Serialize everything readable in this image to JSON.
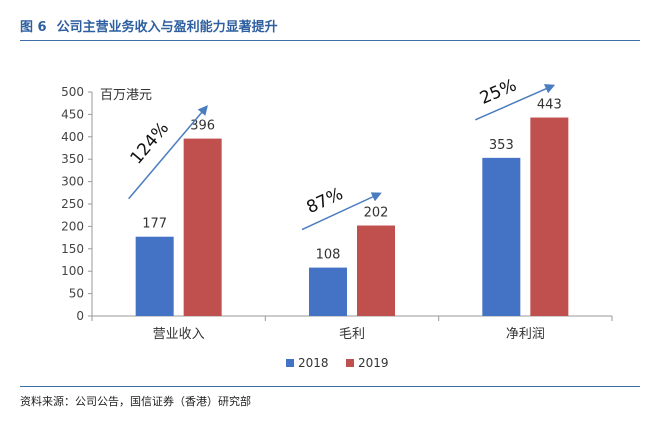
{
  "figure": {
    "number": "图 6",
    "title": "公司主营业务收入与盈利能力显著提升",
    "source": "资料来源：公司公告，国信证券（香港）研究部"
  },
  "colors": {
    "2018": "#4472c4",
    "2019": "#c0504d",
    "arrow": "#4a7cc0",
    "rule": "#3d6fa7"
  },
  "chart_data": {
    "type": "bar",
    "unit_label": "百万港元",
    "categories": [
      "营业收入",
      "毛利",
      "净利润"
    ],
    "series": [
      {
        "name": "2018",
        "values": [
          177,
          108,
          353
        ]
      },
      {
        "name": "2019",
        "values": [
          396,
          202,
          443
        ]
      }
    ],
    "ylim": [
      0,
      500
    ],
    "yticks": [
      0,
      50,
      100,
      150,
      200,
      250,
      300,
      350,
      400,
      450,
      500
    ],
    "grid": false,
    "legend": "bottom",
    "annotations": [
      "124%",
      "87%",
      "25%"
    ]
  }
}
